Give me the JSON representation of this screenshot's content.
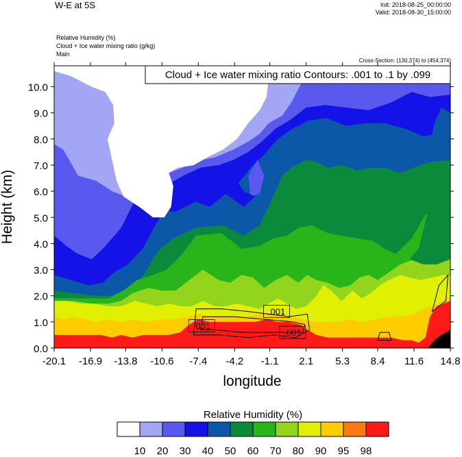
{
  "header": {
    "title": "W-E at 5S",
    "init": "Init: 2018-08-25_00:00:00",
    "valid": "Valid: 2018-08-30_15:00:00",
    "fields": [
      "Relative Humidity   (%)",
      "Cloud + Ice water mixing ratio   (g/kg)",
      "Main"
    ],
    "cross_section": "Cross-Section: (130,374) to (454,374)"
  },
  "chart_data": {
    "type": "heatmap",
    "title": "W-E at 5S",
    "xlabel": "longitude",
    "ylabel": "Height (km)",
    "xlim": [
      -20.1,
      14.8
    ],
    "ylim": [
      0,
      10.8
    ],
    "x_ticks": [
      "-20.1",
      "-16.9",
      "-13.8",
      "-10.6",
      "-7.4",
      "-4.2",
      "-1.1",
      "2.1",
      "5.3",
      "8.4",
      "11.6",
      "14.8"
    ],
    "y_ticks": [
      "0.0",
      "1.0",
      "2.0",
      "3.0",
      "4.0",
      "5.0",
      "6.0",
      "7.0",
      "8.0",
      "9.0",
      "10.0"
    ],
    "contour_label": "Cloud + Ice water mixing ratio Contours: .001 to .1 by .099",
    "contour_annotations": [
      {
        "text": ".001",
        "x": -0.5,
        "y": 1.4
      },
      {
        "text": ".001",
        "x": -7.1,
        "y": 0.85
      },
      {
        "text": ".001",
        "x": 0.9,
        "y": 0.6
      }
    ],
    "colorbar": {
      "title": "Relative Humidity  (%)",
      "levels": [
        "10",
        "20",
        "30",
        "40",
        "50",
        "60",
        "70",
        "80",
        "90",
        "95",
        "98"
      ],
      "colors": [
        "#ffffff",
        "#a3a6f5",
        "#5959f0",
        "#1412e6",
        "#0b57a8",
        "#0c8a3c",
        "#29b51a",
        "#93d51c",
        "#e1ef00",
        "#ffcc00",
        "#ff7a10",
        "#ff1a1a"
      ]
    },
    "field_note": "Relative humidity bands by height: ~98% near surface (0-1 km), 90-95% at 1-2 km, 70-80% at 2-4 km, 40-60% at 4-8 km, 10-30% aloft (8-10.8 km, west)"
  }
}
